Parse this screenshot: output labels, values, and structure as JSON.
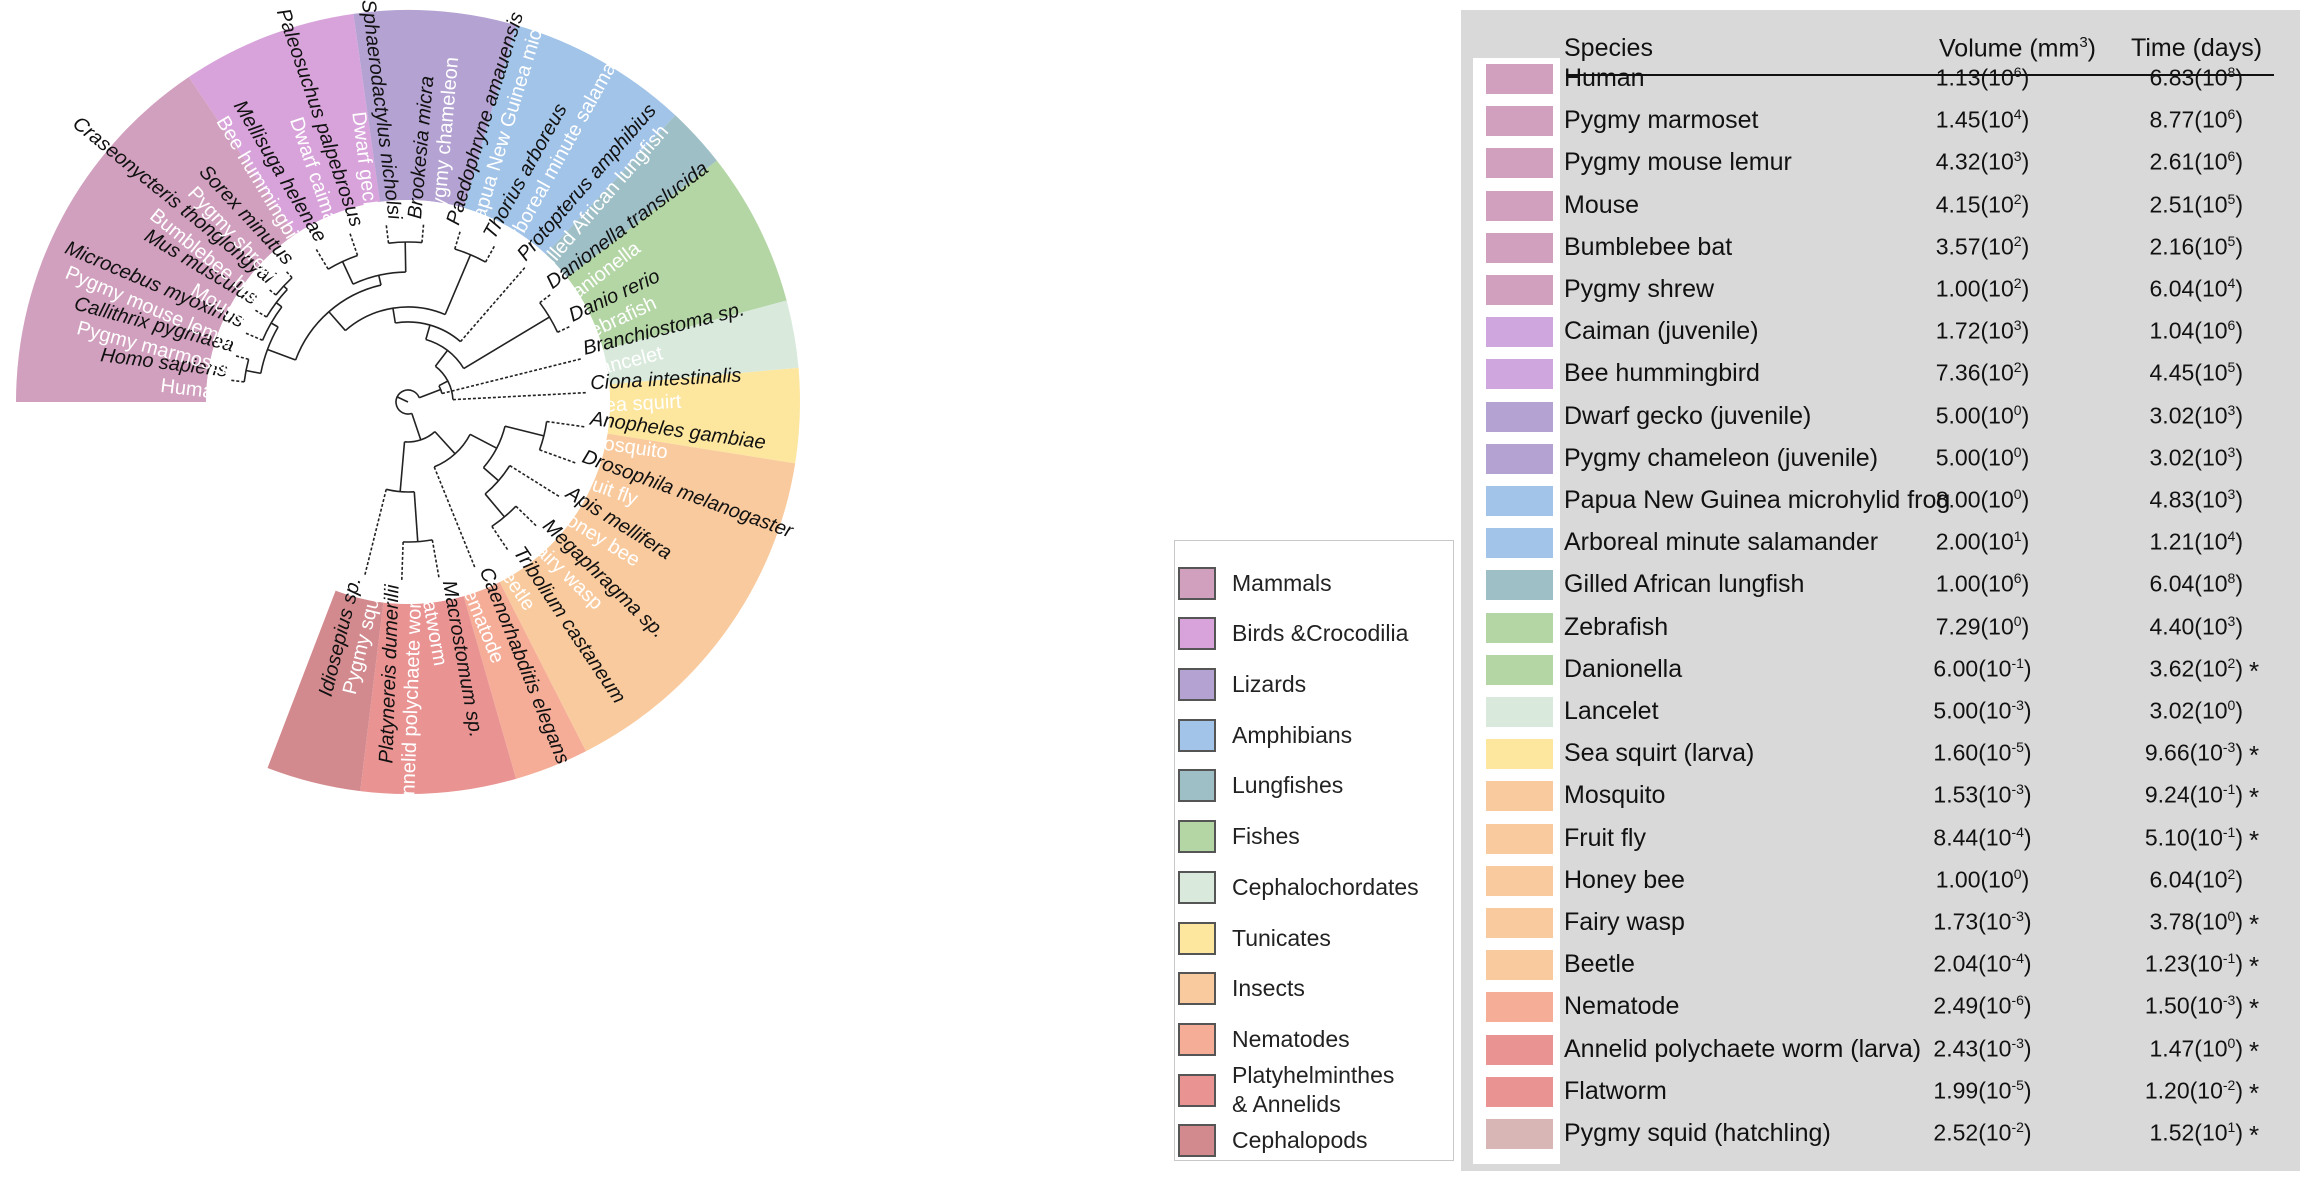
{
  "groups": [
    {
      "name": "Mammals",
      "color": "#d1a0be"
    },
    {
      "name": "Birds &Crocodilia",
      "color": "#d8a3da"
    },
    {
      "name": "Lizards",
      "color": "#b3a2d2"
    },
    {
      "name": "Amphibians",
      "color": "#a2c4e8"
    },
    {
      "name": "Lungfishes",
      "color": "#9fbfc6"
    },
    {
      "name": "Fishes",
      "color": "#b3d6a4"
    },
    {
      "name": "Cephalochordates",
      "color": "#d9eadd"
    },
    {
      "name": "Tunicates",
      "color": "#fde69e"
    },
    {
      "name": "Insects",
      "color": "#f9ca9d"
    },
    {
      "name": "Nematodes",
      "color": "#f5ad98"
    },
    {
      "name": "Platyhelminthes\n& Annelids",
      "color": "#e99392"
    },
    {
      "name": "Cephalopods",
      "color": "#d28a8e"
    }
  ],
  "tree_leaves": [
    {
      "group": 0,
      "common": "Human",
      "sci": "Homo sapiens"
    },
    {
      "group": 0,
      "common": "Pygmy marmoset",
      "sci": "Callithrix pygmaea"
    },
    {
      "group": 0,
      "common": "Pygmy mouse lemur",
      "sci": "Microcebus myoxinus"
    },
    {
      "group": 0,
      "common": "Mouse",
      "sci": "Mus musculus"
    },
    {
      "group": 0,
      "common": "Bumblebee bat",
      "sci": "Craseonycteris thonglongyai"
    },
    {
      "group": 0,
      "common": "Pygmy shrew",
      "sci": "Sorex minutus"
    },
    {
      "group": 1,
      "common": "Bee hummingbird",
      "sci": "Mellisuga helenae"
    },
    {
      "group": 1,
      "common": "Dwarf caiman",
      "sci": "Paleosuchus palpebrosus"
    },
    {
      "group": 2,
      "common": "Dwarf gecko",
      "sci": "Sphaerodactylus nicholsi"
    },
    {
      "group": 2,
      "common": "Pygmy chameleon",
      "sci": "Brookesia micra"
    },
    {
      "group": 3,
      "common": "Papua New Guinea microhylid frog",
      "sci": "Paedophryne amauensis"
    },
    {
      "group": 3,
      "common": "Arboreal minute salamander",
      "sci": "Thorius arboreus"
    },
    {
      "group": 4,
      "common": "Gilled African lungfish",
      "sci": "Protopterus amphibius"
    },
    {
      "group": 5,
      "common": "Danionella",
      "sci": "Danionella translucida"
    },
    {
      "group": 5,
      "common": "Zebrafish",
      "sci": "Danio rerio"
    },
    {
      "group": 6,
      "common": "Lancelet",
      "sci": "Branchiostoma sp."
    },
    {
      "group": 7,
      "common": "Sea squirt",
      "sci": "Ciona intestinalis"
    },
    {
      "group": 8,
      "common": "Mosquito",
      "sci": "Anopheles gambiae"
    },
    {
      "group": 8,
      "common": "Fruit fly",
      "sci": "Drosophila melanogaster"
    },
    {
      "group": 8,
      "common": "Honey bee",
      "sci": "Apis mellifera"
    },
    {
      "group": 8,
      "common": "Fairy wasp",
      "sci": "Megaphragma sp."
    },
    {
      "group": 8,
      "common": "Beetle",
      "sci": "Tribolium castaneum"
    },
    {
      "group": 9,
      "common": "Nematode",
      "sci": "Caenorhabditis elegans"
    },
    {
      "group": 10,
      "common": "Flatworm",
      "sci": "Macrostomum sp."
    },
    {
      "group": 10,
      "common": "Annelid polychaete worm",
      "sci": "Platynereis dumerilii"
    },
    {
      "group": 11,
      "common": "Pygmy squid",
      "sci": "Idiosepius sp."
    }
  ],
  "table": {
    "col_species": "Species",
    "col_volume": "Volume (mm",
    "col_volume_sup": "3",
    "col_volume_end": ")",
    "col_time": "Time (days)",
    "rows": [
      {
        "color": "#d1a0be",
        "species": "Human",
        "vol": "1.13",
        "vol_exp": "6",
        "time": "6.83",
        "time_exp": "8",
        "star": ""
      },
      {
        "color": "#d1a0be",
        "species": "Pygmy marmoset",
        "vol": "1.45",
        "vol_exp": "4",
        "time": "8.77",
        "time_exp": "6",
        "star": ""
      },
      {
        "color": "#d1a0be",
        "species": "Pygmy mouse lemur",
        "vol": "4.32",
        "vol_exp": "3",
        "time": "2.61",
        "time_exp": "6",
        "star": ""
      },
      {
        "color": "#d1a0be",
        "species": "Mouse",
        "vol": "4.15",
        "vol_exp": "2",
        "time": "2.51",
        "time_exp": "5",
        "star": ""
      },
      {
        "color": "#d1a0be",
        "species": "Bumblebee bat",
        "vol": "3.57",
        "vol_exp": "2",
        "time": "2.16",
        "time_exp": "5",
        "star": ""
      },
      {
        "color": "#d1a0be",
        "species": "Pygmy shrew",
        "vol": "1.00",
        "vol_exp": "2",
        "time": "6.04",
        "time_exp": "4",
        "star": ""
      },
      {
        "color": "#cfa6dd",
        "species": "Caiman (juvenile)",
        "vol": "1.72",
        "vol_exp": "3",
        "time": "1.04",
        "time_exp": "6",
        "star": ""
      },
      {
        "color": "#cfa6dd",
        "species": "Bee hummingbird",
        "vol": "7.36",
        "vol_exp": "2",
        "time": "4.45",
        "time_exp": "5",
        "star": ""
      },
      {
        "color": "#b3a2d2",
        "species": "Dwarf gecko (juvenile)",
        "vol": "5.00",
        "vol_exp": "0",
        "time": "3.02",
        "time_exp": "3",
        "star": ""
      },
      {
        "color": "#b3a2d2",
        "species": "Pygmy chameleon (juvenile)",
        "vol": "5.00",
        "vol_exp": "0",
        "time": "3.02",
        "time_exp": "3",
        "star": ""
      },
      {
        "color": "#a2c4e8",
        "species": "Papua New Guinea microhylid frog",
        "vol": "8.00",
        "vol_exp": "0",
        "time": "4.83",
        "time_exp": "3",
        "star": ""
      },
      {
        "color": "#a2c4e8",
        "species": "Arboreal minute salamander",
        "vol": "2.00",
        "vol_exp": "1",
        "time": "1.21",
        "time_exp": "4",
        "star": ""
      },
      {
        "color": "#9fbfc6",
        "species": "Gilled African lungfish",
        "vol": "1.00",
        "vol_exp": "6",
        "time": "6.04",
        "time_exp": "8",
        "star": ""
      },
      {
        "color": "#b3d6a4",
        "species": "Zebrafish",
        "vol": "7.29",
        "vol_exp": "0",
        "time": "4.40",
        "time_exp": "3",
        "star": ""
      },
      {
        "color": "#b3d6a4",
        "species": "Danionella",
        "vol": "6.00",
        "vol_exp": "-1",
        "time": "3.62",
        "time_exp": "2",
        "star": "*"
      },
      {
        "color": "#d9eadd",
        "species": "Lancelet",
        "vol": "5.00",
        "vol_exp": "-3",
        "time": "3.02",
        "time_exp": "0",
        "star": ""
      },
      {
        "color": "#fde69e",
        "species": "Sea squirt (larva)",
        "vol": "1.60",
        "vol_exp": "-5",
        "time": "9.66",
        "time_exp": "-3",
        "star": "*"
      },
      {
        "color": "#f9ca9d",
        "species": "Mosquito",
        "vol": "1.53",
        "vol_exp": "-3",
        "time": "9.24",
        "time_exp": "-1",
        "star": "*"
      },
      {
        "color": "#f9ca9d",
        "species": "Fruit fly",
        "vol": "8.44",
        "vol_exp": "-4",
        "time": "5.10",
        "time_exp": "-1",
        "star": "*"
      },
      {
        "color": "#f9ca9d",
        "species": "Honey bee",
        "vol": "1.00",
        "vol_exp": "0",
        "time": "6.04",
        "time_exp": "2",
        "star": ""
      },
      {
        "color": "#f9ca9d",
        "species": "Fairy wasp",
        "vol": "1.73",
        "vol_exp": "-3",
        "time": "3.78",
        "time_exp": "0",
        "star": "*"
      },
      {
        "color": "#f9ca9d",
        "species": "Beetle",
        "vol": "2.04",
        "vol_exp": "-4",
        "time": "1.23",
        "time_exp": "-1",
        "star": "*"
      },
      {
        "color": "#f5ad98",
        "species": "Nematode",
        "vol": "2.49",
        "vol_exp": "-6",
        "time": "1.50",
        "time_exp": "-3",
        "star": "*"
      },
      {
        "color": "#e99392",
        "species": "Annelid polychaete worm (larva)",
        "vol": "2.43",
        "vol_exp": "-3",
        "time": "1.47",
        "time_exp": "0",
        "star": "*"
      },
      {
        "color": "#e99392",
        "species": "Flatworm",
        "vol": "1.99",
        "vol_exp": "-5",
        "time": "1.20",
        "time_exp": "-2",
        "star": "*"
      },
      {
        "color": "#d9b6b6",
        "species": "Pygmy squid (hatchling)",
        "vol": "2.52",
        "vol_exp": "-2",
        "time": "1.52",
        "time_exp": "1",
        "star": "*"
      }
    ]
  }
}
